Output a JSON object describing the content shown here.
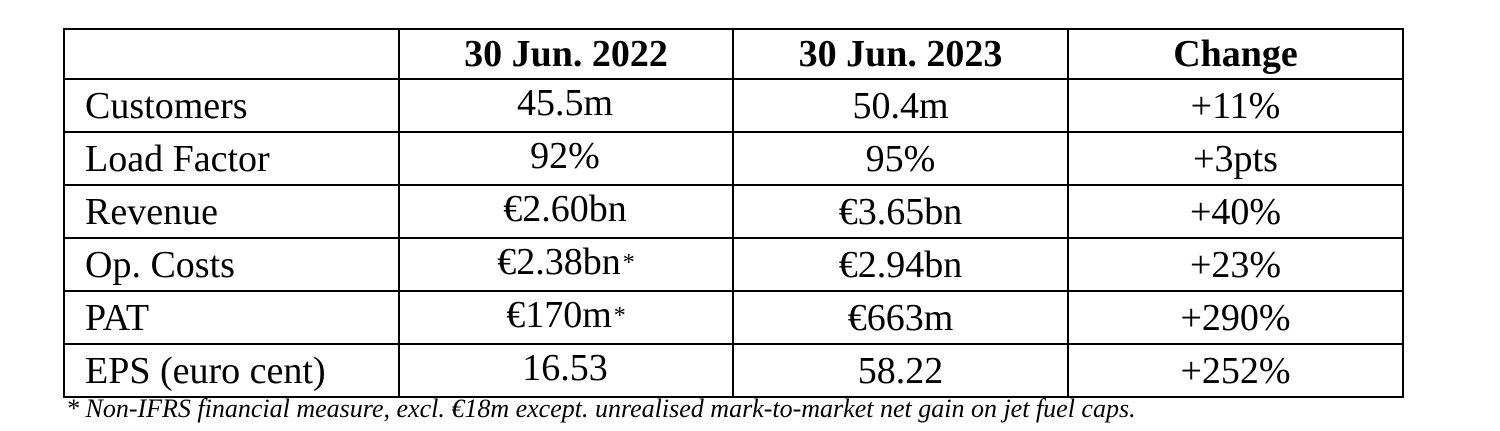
{
  "table": {
    "columns": [
      "",
      "30 Jun. 2022",
      "30 Jun. 2023",
      "Change"
    ],
    "rows": [
      {
        "metric": "Customers",
        "y2022": "45.5m",
        "y2022_mark": "",
        "y2023": "50.4m",
        "change": "+11%"
      },
      {
        "metric": "Load Factor",
        "y2022": "92%",
        "y2022_mark": "",
        "y2023": "95%",
        "change": "+3pts"
      },
      {
        "metric": "Revenue",
        "y2022": "€2.60bn",
        "y2022_mark": "",
        "y2023": "€3.65bn",
        "change": "+40%"
      },
      {
        "metric": "Op. Costs",
        "y2022": "€2.38bn",
        "y2022_mark": "*",
        "y2023": "€2.94bn",
        "change": "+23%"
      },
      {
        "metric": "PAT",
        "y2022": "€170m",
        "y2022_mark": "*",
        "y2023": "€663m",
        "change": "+290%"
      },
      {
        "metric": "EPS (euro cent)",
        "y2022": "16.53",
        "y2022_mark": "",
        "y2023": "58.22",
        "change": "+252%"
      }
    ]
  },
  "footnote": "* Non-IFRS financial measure, excl. €18m except. unrealised mark-to-market net gain on jet fuel caps."
}
